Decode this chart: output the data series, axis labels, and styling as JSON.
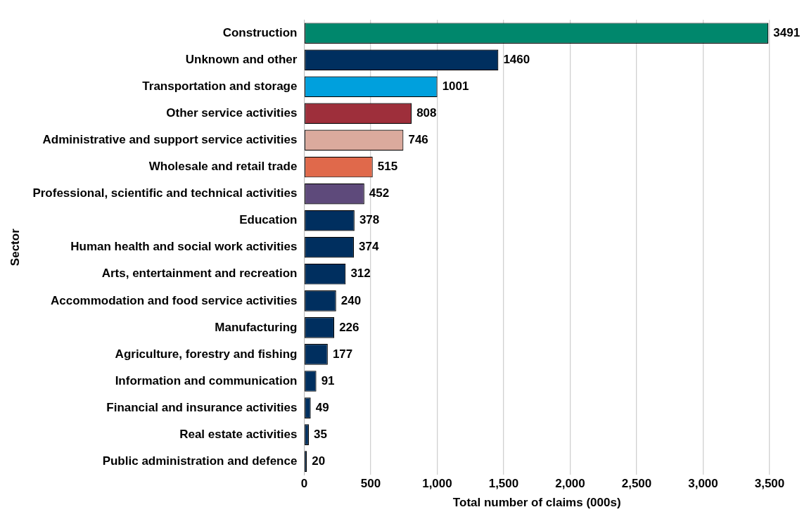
{
  "chart_data": {
    "type": "bar",
    "orientation": "horizontal",
    "xlabel": "Total number of claims (000s)",
    "ylabel": "Sector",
    "categories": [
      "Construction",
      "Unknown and other",
      "Transportation and storage",
      "Other service activities",
      "Administrative and support service activities",
      "Wholesale and retail trade",
      "Professional, scientific and technical activities",
      "Education",
      "Human health and social work activities",
      "Arts, entertainment and recreation",
      "Accommodation and food service activities",
      "Manufacturing",
      "Agriculture, forestry and fishing",
      "Information and communication",
      "Financial and insurance activities",
      "Real estate activities",
      "Public administration and defence"
    ],
    "values": [
      3491,
      1460,
      1001,
      808,
      746,
      515,
      452,
      378,
      374,
      312,
      240,
      226,
      177,
      91,
      49,
      35,
      20
    ],
    "colors": [
      "#00876c",
      "#002f5f",
      "#00a0dd",
      "#9e2f3b",
      "#dbaa9d",
      "#e0694b",
      "#5e4a7b",
      "#002f5f",
      "#002f5f",
      "#002f5f",
      "#002f5f",
      "#002f5f",
      "#002f5f",
      "#002f5f",
      "#002f5f",
      "#002f5f",
      "#002f5f"
    ],
    "xlim": [
      0,
      3500
    ],
    "xticks": [
      {
        "value": 0,
        "label": "0"
      },
      {
        "value": 500,
        "label": "500"
      },
      {
        "value": 1000,
        "label": "1,000"
      },
      {
        "value": 1500,
        "label": "1,500"
      },
      {
        "value": 2000,
        "label": "2,000"
      },
      {
        "value": 2500,
        "label": "2,500"
      },
      {
        "value": 3000,
        "label": "3,000"
      },
      {
        "value": 3500,
        "label": "3,500"
      }
    ],
    "grid": "x",
    "data_labels": true
  }
}
